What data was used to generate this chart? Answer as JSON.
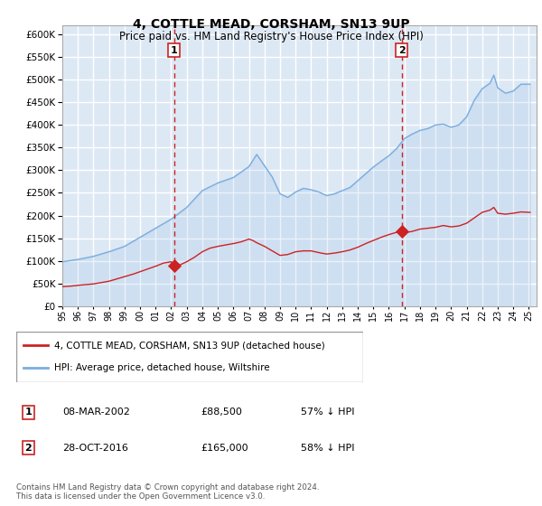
{
  "title": "4, COTTLE MEAD, CORSHAM, SN13 9UP",
  "subtitle": "Price paid vs. HM Land Registry's House Price Index (HPI)",
  "ylim": [
    0,
    620000
  ],
  "yticks": [
    0,
    50000,
    100000,
    150000,
    200000,
    250000,
    300000,
    350000,
    400000,
    450000,
    500000,
    550000,
    600000
  ],
  "xlim_start": 1995.0,
  "xlim_end": 2025.5,
  "plot_bg_color": "#dde8f5",
  "grid_color": "#ffffff",
  "sale1_date": 2002.18,
  "sale1_price": 88500,
  "sale1_label": "1",
  "sale2_date": 2016.83,
  "sale2_price": 165000,
  "sale2_label": "2",
  "hpi_color": "#7aadde",
  "price_color": "#cc2222",
  "dashed_line_color": "#cc2222",
  "legend_label_price": "4, COTTLE MEAD, CORSHAM, SN13 9UP (detached house)",
  "legend_label_hpi": "HPI: Average price, detached house, Wiltshire",
  "table_row1": [
    "1",
    "08-MAR-2002",
    "£88,500",
    "57% ↓ HPI"
  ],
  "table_row2": [
    "2",
    "28-OCT-2016",
    "£165,000",
    "58% ↓ HPI"
  ],
  "footer": "Contains HM Land Registry data © Crown copyright and database right 2024.\nThis data is licensed under the Open Government Licence v3.0."
}
